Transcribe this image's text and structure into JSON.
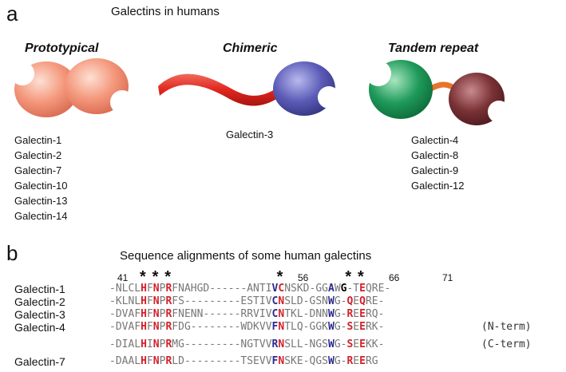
{
  "panel_a": {
    "letter": "a",
    "title": "Galectins in humans",
    "groups": [
      {
        "label": "Prototypical",
        "members": [
          "Galectin-1",
          "Galectin-2",
          "Galectin-7",
          "Galectin-10",
          "Galectin-13",
          "Galectin-14"
        ]
      },
      {
        "label": "Chimeric",
        "members": [
          "Galectin-3"
        ]
      },
      {
        "label": "Tandem repeat",
        "members": [
          "Galectin-4",
          "Galectin-8",
          "Galectin-9",
          "Galectin-12"
        ]
      }
    ],
    "colors": {
      "prototypical": "#f4977b",
      "chimeric_tail": "#e0261f",
      "chimeric_crd": "#5c5cb8",
      "tandem_n": "#1f9a5a",
      "tandem_link": "#e8732a",
      "tandem_c": "#7a3236"
    }
  },
  "panel_b": {
    "letter": "b",
    "title": "Sequence alignments of some human galectins",
    "positions": [
      "41",
      "56",
      "66",
      "71"
    ],
    "star": "*",
    "rows": [
      {
        "name": "Galectin-1",
        "seq": "-NLCLHFNPRFNAHGD------ANTIVCNSKD-GGAWG-TEQRE-",
        "note": ""
      },
      {
        "name": "Galectin-2",
        "seq": "-KLNLHFNPRFS---------ESTIVCNSLD-GSNWG-QEQRE-",
        "note": ""
      },
      {
        "name": "Galectin-3",
        "seq": "-DVAFHFNPRFNENN------RRVIVCNTKL-DNNWG-REERQ-",
        "note": ""
      },
      {
        "name": "Galectin-4",
        "seq": "-DVAFHFNPRFDG--------WDKVVFNTLQ-GGKWG-SEERK-",
        "note": "(N-term)"
      },
      {
        "name": "",
        "seq": "-DIALHINPRMG---------NGTVVRNSLL-NGSWG-SEEKK-",
        "note": "(C-term)"
      },
      {
        "name": "Galectin-7",
        "seq": "-DAALHFNPRLD---------TSEVVFNSKE-QGSWG-REERG",
        "note": ""
      }
    ],
    "highlight_red": [
      5,
      7,
      9,
      27,
      38,
      40
    ],
    "highlight_blue": [
      26,
      35
    ],
    "highlight_black": [
      37
    ]
  }
}
